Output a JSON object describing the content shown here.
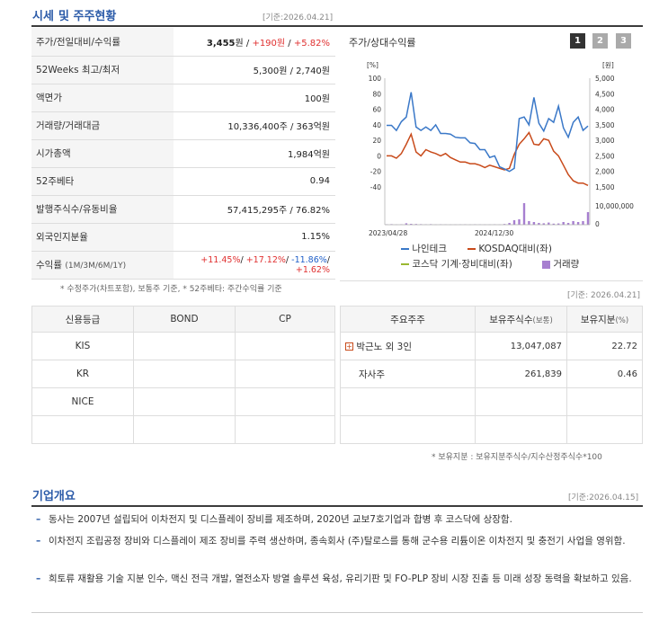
{
  "header": {
    "title_part1": "시세",
    "title_part2": "및 주주현황",
    "date_ref": "[기준:2026.04.21]"
  },
  "quote_table": {
    "rows": [
      {
        "label": "주가/전일대비/수익률",
        "price": "3,455",
        "unit": "원",
        "change": "+190",
        "change_unit": "원",
        "rate": "+5.82%"
      },
      {
        "label": "52Weeks 최고/최저",
        "value": "5,300원 / 2,740원"
      },
      {
        "label": "액면가",
        "value": "100원"
      },
      {
        "label": "거래량/거래대금",
        "value": "10,336,400주 / 363억원"
      },
      {
        "label": "시가총액",
        "value": "1,984억원"
      },
      {
        "label": "52주베타",
        "value": "0.94"
      },
      {
        "label": "발행주식수/유동비율",
        "value": "57,415,295주 / 76.82%"
      },
      {
        "label": "외국인지분율",
        "value": "1.15%"
      }
    ],
    "return_row": {
      "label": "수익률",
      "label_sub": "(1M/3M/6M/1Y)",
      "r1m": "+11.45%",
      "r3m": "+17.12%",
      "r6m": "-11.86%",
      "r1y": "+1.62%"
    },
    "footnote": "* 수정주가(차트포함), 보통주 기준, * 52주베타: 주간수익률 기준"
  },
  "chart_panel": {
    "title": "주가/상대수익률",
    "pages": [
      "1",
      "2",
      "3"
    ],
    "selected_page": "1",
    "left_unit": "[%]",
    "right_unit": "[원]",
    "vol_label": "10,000,000",
    "vol_zero": "0",
    "legend": {
      "s1": "나인테크",
      "s2": "KOSDAQ대비(좌)",
      "s3": "코스닥 기계·장비대비(좌)",
      "s4": "거래량"
    },
    "colors": {
      "price": "#3a78c8",
      "kosdaq": "#c84a1a",
      "sector": "#9ab830",
      "volume": "#a77fd0"
    }
  },
  "chart_data": {
    "type": "line",
    "x_labels": [
      "2023/04/28",
      "2024/12/30"
    ],
    "left_axis": {
      "unit": "%",
      "range": [
        -40,
        100
      ],
      "ticks": [
        "100",
        "80",
        "60",
        "40",
        "20",
        "0",
        "-20",
        "-40"
      ]
    },
    "right_axis": {
      "unit": "원",
      "range": [
        1500,
        5000
      ],
      "ticks": [
        "5,000",
        "4,500",
        "4,000",
        "3,500",
        "3,000",
        "2,500",
        "2,000",
        "1,500"
      ]
    },
    "series": [
      {
        "name": "나인테크",
        "axis": "right",
        "values": [
          3480,
          3480,
          3320,
          3600,
          3750,
          4550,
          3430,
          3320,
          3430,
          3320,
          3500,
          3220,
          3220,
          3200,
          3100,
          3080,
          3080,
          2920,
          2900,
          2700,
          2700,
          2450,
          2500,
          2150,
          2080,
          2000,
          2100,
          3700,
          3750,
          3500,
          4380,
          3550,
          3300,
          3700,
          3580,
          4100,
          3400,
          3100,
          3580,
          3750,
          3320,
          3460
        ]
      },
      {
        "name": "KOSDAQ대비(좌)",
        "axis": "left",
        "values": [
          0,
          0,
          -3,
          3,
          15,
          28,
          5,
          0,
          8,
          5,
          3,
          0,
          3,
          -2,
          -5,
          -8,
          -8,
          -10,
          -10,
          -12,
          -15,
          -12,
          -14,
          -16,
          -18,
          -16,
          2,
          15,
          22,
          30,
          15,
          14,
          22,
          20,
          6,
          0,
          -12,
          -24,
          -32,
          -35,
          -35,
          -38
        ]
      }
    ],
    "volume": {
      "range": [
        0,
        20000000
      ],
      "values": [
        200000,
        300000,
        100000,
        200000,
        800000,
        500000,
        400000,
        300000,
        200000,
        300000,
        100000,
        200000,
        150000,
        100000,
        100000,
        150000,
        200000,
        100000,
        200000,
        150000,
        100000,
        100000,
        200000,
        100000,
        400000,
        1000000,
        2500000,
        3000000,
        12000000,
        2000000,
        1500000,
        1000000,
        800000,
        1200000,
        600000,
        700000,
        1500000,
        1000000,
        2000000,
        1500000,
        2000000,
        7000000
      ]
    }
  },
  "credit_table": {
    "headers": [
      "신용등급",
      "BOND",
      "CP"
    ],
    "rows": [
      [
        "KIS",
        "",
        ""
      ],
      [
        "KR",
        "",
        ""
      ],
      [
        "NICE",
        "",
        ""
      ],
      [
        "",
        "",
        ""
      ]
    ]
  },
  "shareholder_table": {
    "date_ref": "[기준: 2026.04.21]",
    "headers": {
      "h1": "주요주주",
      "h2": "보유주식수",
      "h2_unit": "(보통)",
      "h3": "보유지분",
      "h3_unit": "(%)"
    },
    "rows": [
      {
        "name": "박근노 외 3인",
        "shares": "13,047,087",
        "pct": "22.72"
      },
      {
        "name": "자사주",
        "shares": "261,839",
        "pct": "0.46"
      },
      {
        "name": "",
        "shares": "",
        "pct": ""
      },
      {
        "name": "",
        "shares": "",
        "pct": ""
      }
    ],
    "footnote": "* 보유지분 : 보유지분주식수/지수산정주식수*100"
  },
  "company": {
    "title": "기업개요",
    "date_ref": "[기준:2026.04.15]",
    "bullets": [
      "동사는 2007년 설립되어 이차전지 및 디스플레이 장비를 제조하며, 2020년 교보7호기업과 합병 후 코스닥에 상장함.",
      "이차전지 조립공정 장비와 디스플레이 제조 장비를 주력 생산하며, 종속회사 (주)탈로스를 통해 군수용 리튬이온 이차전지 및 충전기 사업을 영위함.",
      "희토류 재활용 기술 지분 인수, 맥신 전극 개발, 열전소자 방열 솔루션 육성, 유리기판 및 FO-PLP 장비 시장 진출 등 미래 성장 동력을 확보하고 있음."
    ]
  }
}
